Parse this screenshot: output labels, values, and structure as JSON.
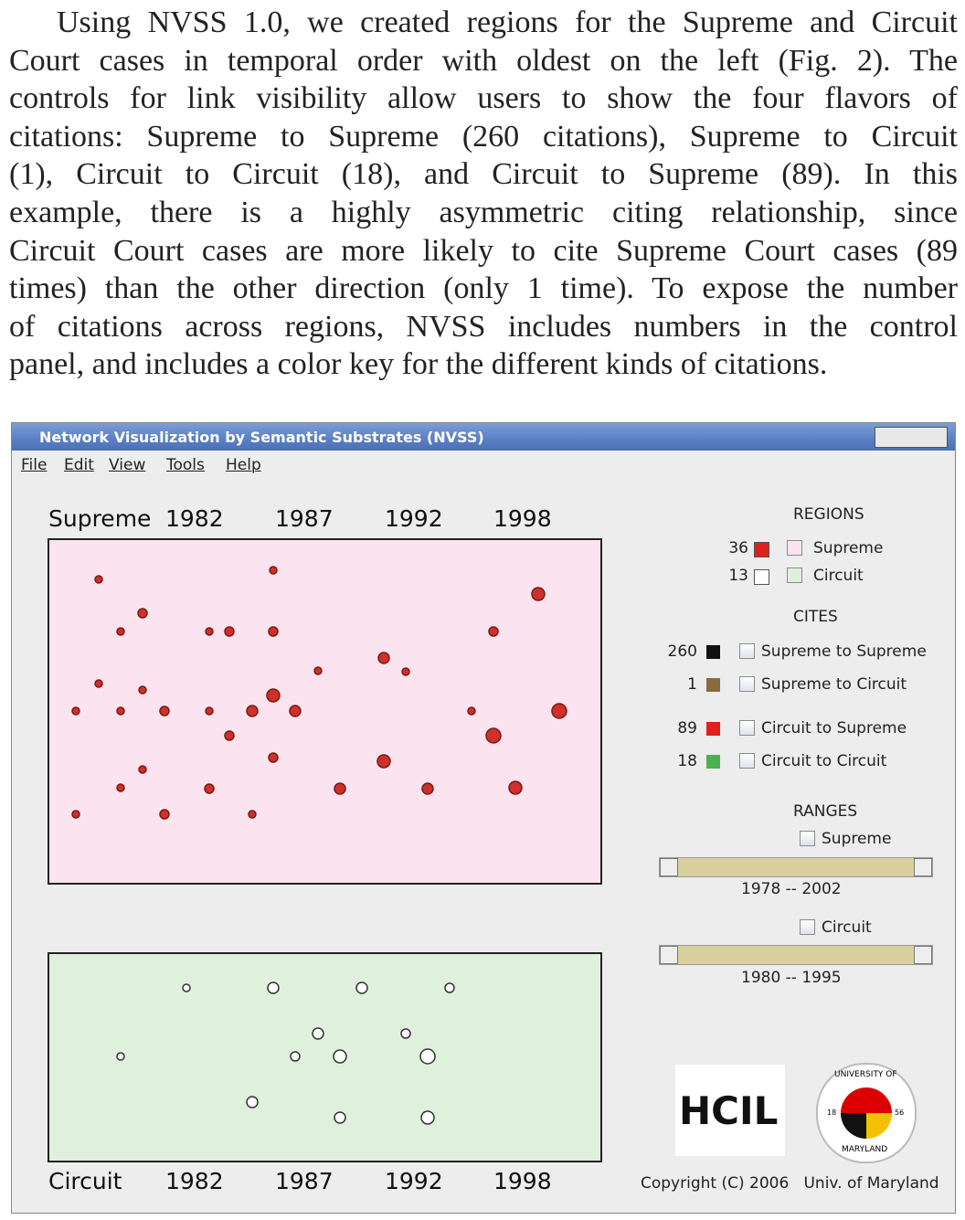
{
  "paragraph": {
    "lines": [
      "Using NVSS 1.0, we created regions for the Supreme and Circuit",
      "Court cases in temporal order with oldest on the left (Fig. 2). The",
      "controls for link visibility allow users to show the four flavors of",
      "citations: Supreme to Supreme (260 citations), Supreme to Circuit",
      "(1), Circuit to Circuit (18), and Circuit to Supreme (89).  In this",
      "example, there is a highly asymmetric citing relationship, since",
      "Circuit Court cases are more likely to cite Supreme Court cases (89",
      "times) than the other direction (only 1 time).  To expose the number",
      "of citations across regions, NVSS includes numbers in the control",
      "panel, and includes a color key for the different kinds of citations."
    ]
  },
  "window": {
    "title": "Network Visualization by Semantic Substrates (NVSS)",
    "menu": [
      "File",
      "Edit",
      "View",
      "Tools",
      "Help"
    ]
  },
  "supreme_axis": {
    "label": "Supreme",
    "years": [
      "1982",
      "1987",
      "1992",
      "1998"
    ]
  },
  "circuit_axis": {
    "label": "Circuit",
    "years": [
      "1982",
      "1987",
      "1992",
      "1998"
    ]
  },
  "panel": {
    "regions_title": "REGIONS",
    "regions": [
      {
        "count": 36,
        "name": "Supreme"
      },
      {
        "count": 13,
        "name": "Circuit"
      }
    ],
    "cites_title": "CITES",
    "cites": [
      {
        "count": 260,
        "name": "Supreme to Supreme"
      },
      {
        "count": 1,
        "name": "Supreme to Circuit"
      },
      {
        "count": 89,
        "name": "Circuit to Supreme"
      },
      {
        "count": 18,
        "name": "Circuit to Circuit"
      }
    ],
    "ranges_title": "RANGES",
    "ranges": [
      {
        "name": "Supreme",
        "range": "1978 -- 2002"
      },
      {
        "name": "Circuit",
        "range": "1980 -- 1995"
      }
    ]
  },
  "logos": {
    "hcil": "HCIL",
    "seal_top": "UNIVERSITY OF",
    "seal_bottom": "MARYLAND",
    "seal_left": "18",
    "seal_right": "56"
  },
  "copyright": "Copyright (C) 2006   Univ. of Maryland"
}
